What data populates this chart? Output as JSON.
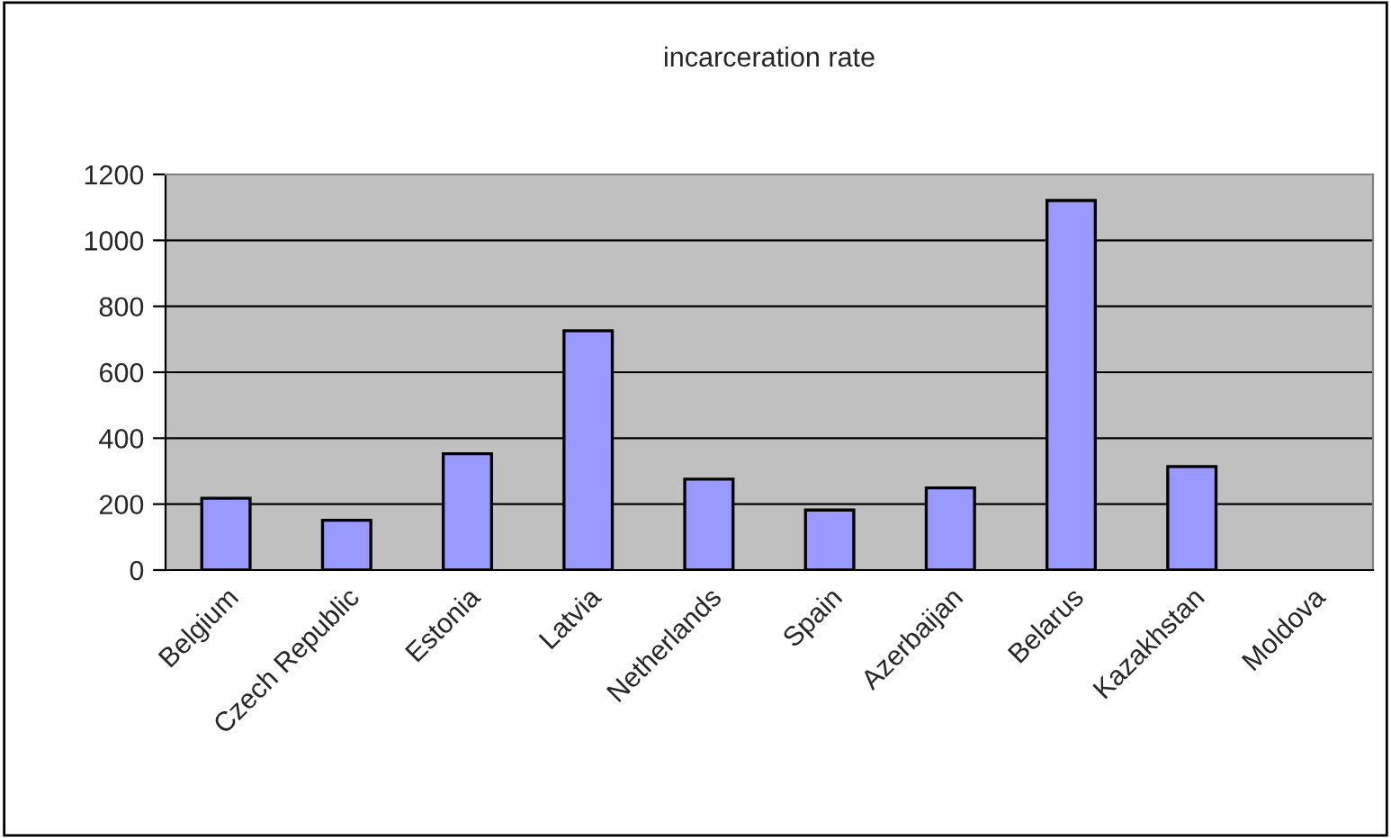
{
  "chart_data": {
    "type": "bar",
    "title": "incarceration rate",
    "categories": [
      "Belgium",
      "Czech Republic",
      "Estonia",
      "Latvia",
      "Netherlands",
      "Spain",
      "Azerbaijan",
      "Belarus",
      "Kazakhstan",
      "Moldova"
    ],
    "values": [
      218,
      151,
      353,
      726,
      276,
      182,
      249,
      1121,
      314,
      null
    ],
    "color": "#9999ff",
    "ylim": [
      0,
      1200
    ],
    "yticks": [
      0,
      200,
      400,
      600,
      800,
      1000,
      1200
    ],
    "grid": "y",
    "legend": false
  }
}
